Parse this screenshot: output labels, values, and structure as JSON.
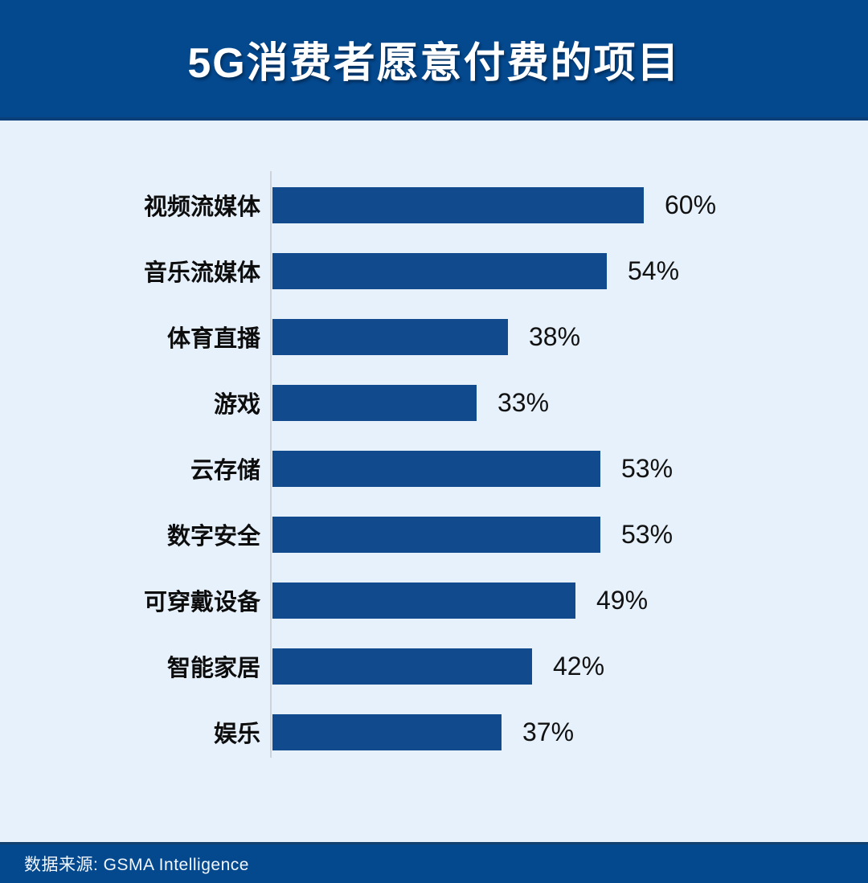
{
  "page": {
    "title": "5G消费者愿意付费的项目",
    "source_label": "数据来源: GSMA Intelligence"
  },
  "colors": {
    "header_bg": "#04488e",
    "footer_bg": "#04488e",
    "body_bg": "#e7f1fb",
    "bar": "#114b8e",
    "axis_line": "#cdd3d9",
    "title_text": "#ffffff",
    "label_text": "#0d0d0d"
  },
  "chart_data": {
    "type": "bar",
    "orientation": "horizontal",
    "title": "5G消费者愿意付费的项目",
    "xlabel": "",
    "ylabel": "",
    "xlim": [
      0,
      65
    ],
    "grid": false,
    "legend": false,
    "categories": [
      "视频流媒体",
      "音乐流媒体",
      "体育直播",
      "游戏",
      "云存储",
      "数字安全",
      "可穿戴设备",
      "智能家居",
      "娱乐"
    ],
    "values": [
      60,
      54,
      38,
      33,
      53,
      53,
      49,
      42,
      37
    ],
    "value_labels": [
      "60%",
      "54%",
      "38%",
      "33%",
      "53%",
      "53%",
      "49%",
      "42%",
      "37%"
    ],
    "source": "数据来源: GSMA Intelligence"
  }
}
